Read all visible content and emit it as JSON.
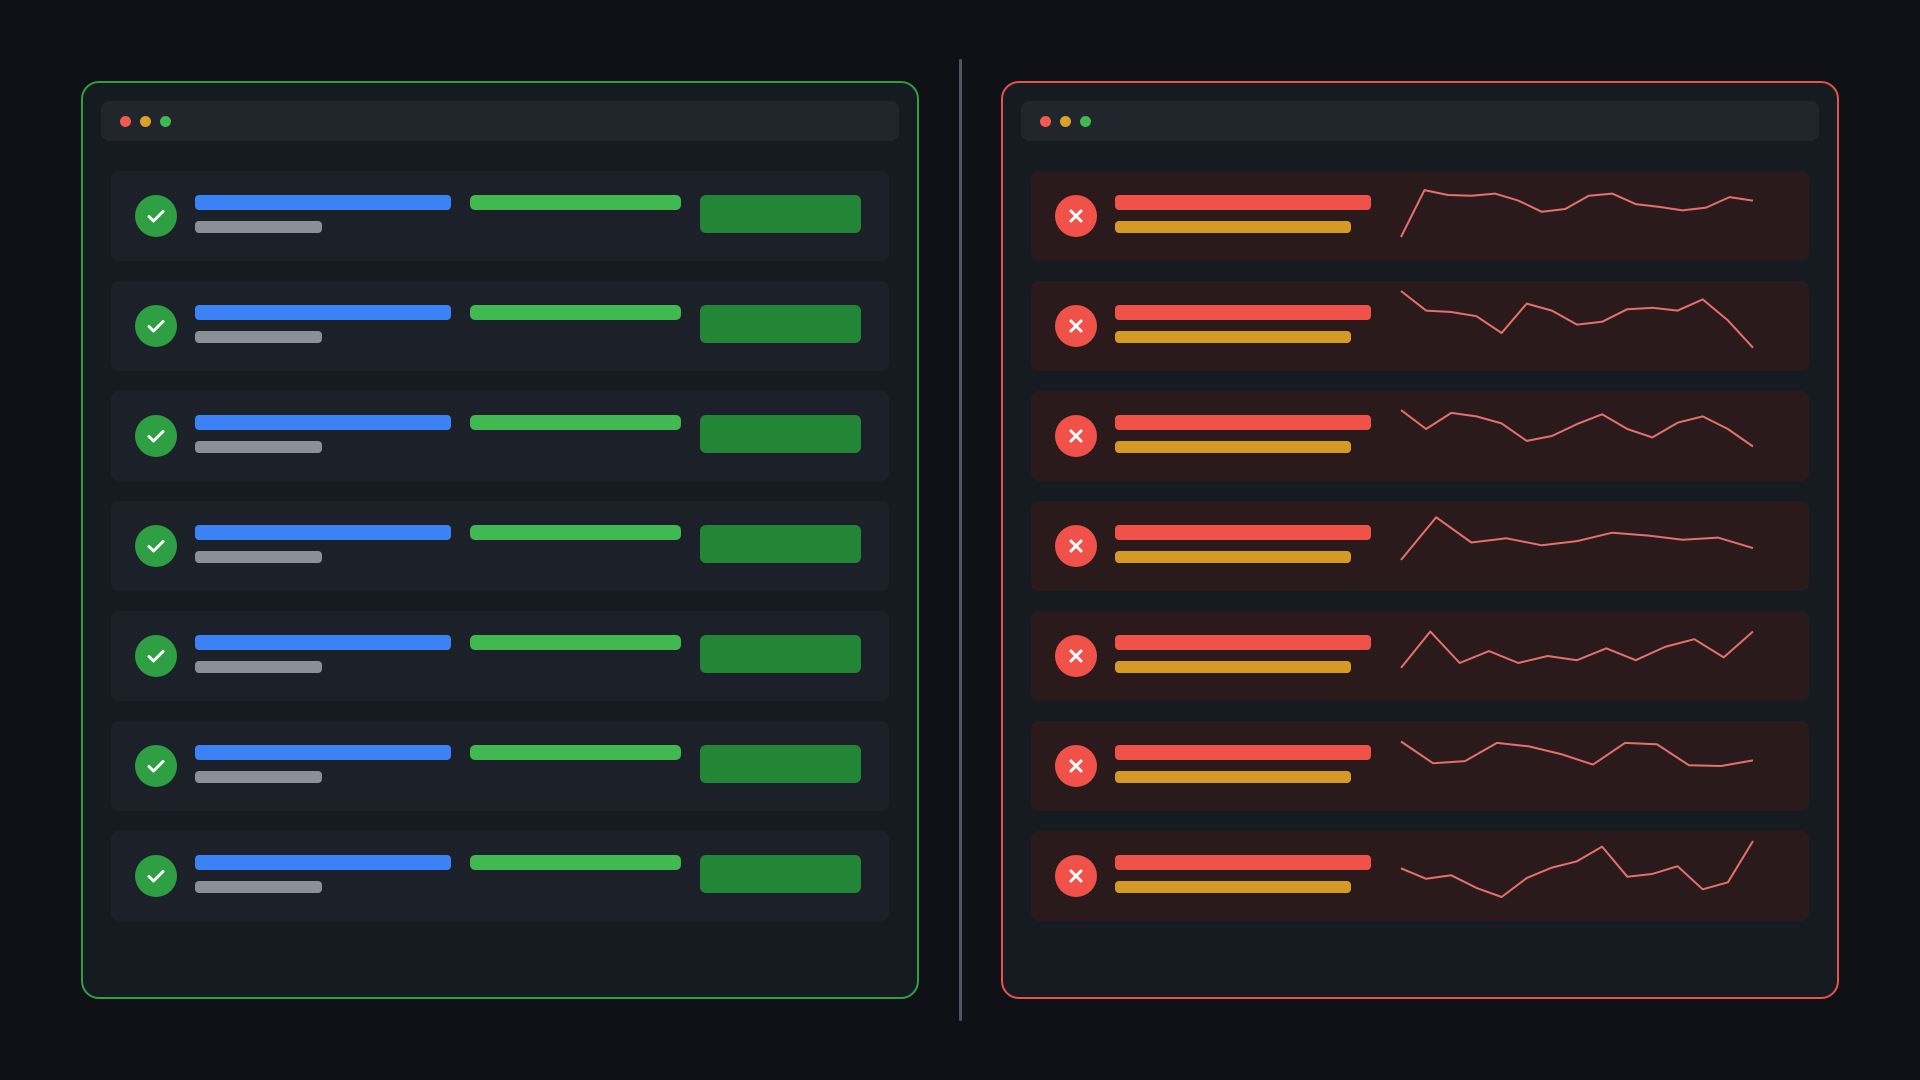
{
  "colors": {
    "background": "#0f1116",
    "panel": "#161b22",
    "titlebar": "#21262d",
    "divider": "#4d5566",
    "dot_red": "#f25a4f",
    "dot_yellow": "#d9a02a",
    "dot_green": "#3fb950",
    "left_border": "#2ea043",
    "left_row": "#1c2129",
    "left_title_bar": "#3b82f6",
    "left_sub_bar": "#8b8f98",
    "left_pill": "#3fb950",
    "left_button": "#238636",
    "left_icon": "#2ea043",
    "right_border": "#e5534b",
    "right_row": "#2a1a1c",
    "right_title_bar": "#f0524a",
    "right_sub_bar": "#d59a25",
    "right_icon": "#f0524a",
    "sparkline": "#e5706a"
  },
  "left_panel": {
    "row_icon": "check-circle-icon",
    "row_count": 7
  },
  "right_panel": {
    "row_icon": "x-circle-icon",
    "sparklines": [
      [
        0.2,
        0.87,
        0.8,
        0.79,
        0.82,
        0.72,
        0.56,
        0.6,
        0.79,
        0.82,
        0.67,
        0.63,
        0.58,
        0.62,
        0.77,
        0.72
      ],
      [
        1.0,
        0.72,
        0.7,
        0.64,
        0.4,
        0.82,
        0.72,
        0.52,
        0.56,
        0.74,
        0.76,
        0.72,
        0.88,
        0.58,
        0.19
      ],
      [
        0.87,
        0.6,
        0.83,
        0.78,
        0.68,
        0.43,
        0.5,
        0.67,
        0.81,
        0.6,
        0.48,
        0.69,
        0.78,
        0.6,
        0.35
      ],
      [
        0.3,
        0.91,
        0.55,
        0.61,
        0.51,
        0.57,
        0.69,
        0.65,
        0.59,
        0.62,
        0.47
      ],
      [
        0.33,
        0.85,
        0.4,
        0.57,
        0.4,
        0.5,
        0.44,
        0.61,
        0.44,
        0.63,
        0.74,
        0.48,
        0.85
      ],
      [
        0.85,
        0.54,
        0.57,
        0.83,
        0.78,
        0.67,
        0.52,
        0.83,
        0.81,
        0.51,
        0.5,
        0.58
      ],
      [
        0.61,
        0.46,
        0.51,
        0.33,
        0.2,
        0.47,
        0.62,
        0.71,
        0.92,
        0.49,
        0.53,
        0.64,
        0.31,
        0.41,
        1.0
      ]
    ]
  }
}
